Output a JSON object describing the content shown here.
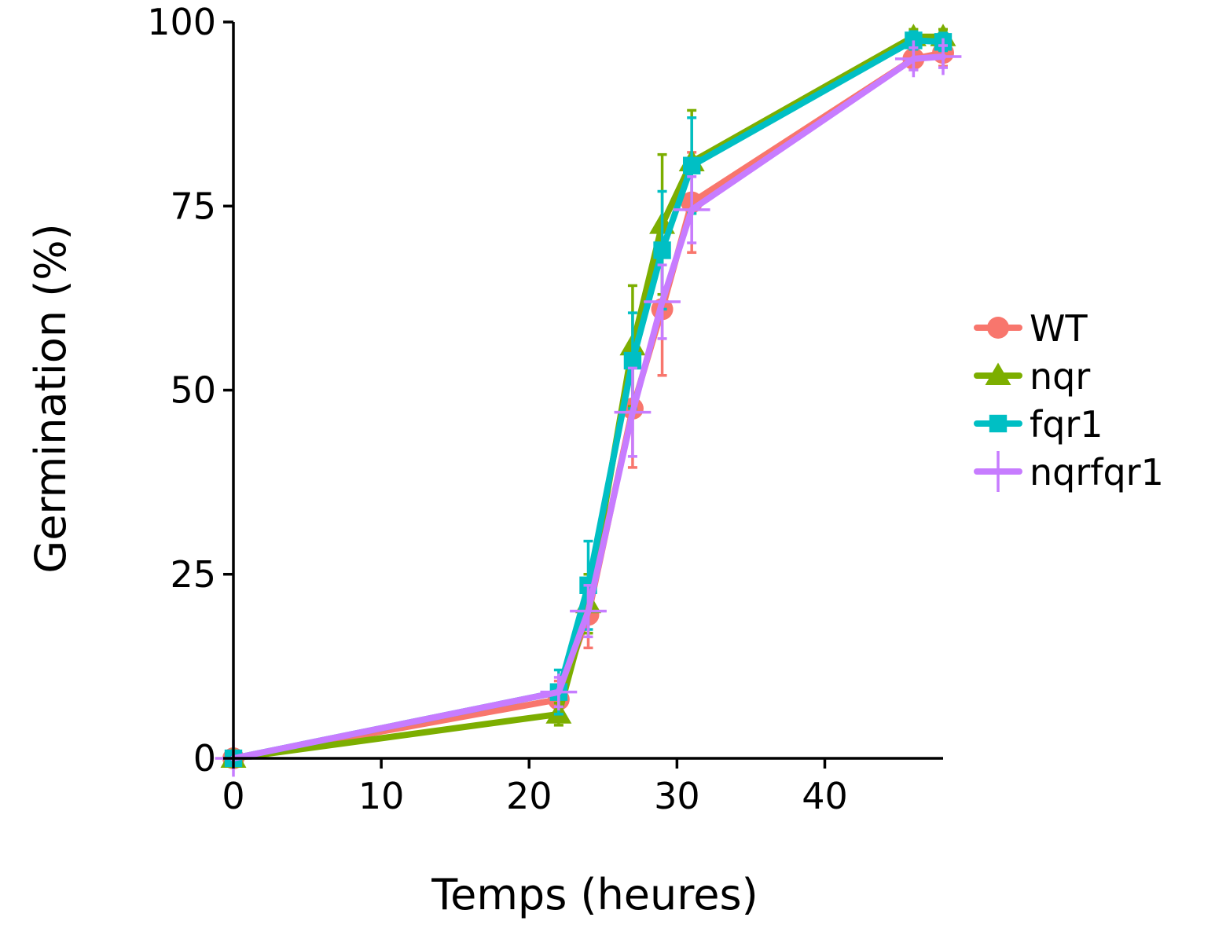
{
  "chart_data": {
    "type": "line",
    "title": "",
    "xlabel": "Temps (heures)",
    "ylabel": "Germination (%)",
    "xlim": [
      0,
      48
    ],
    "ylim": [
      0,
      100
    ],
    "xticks": [
      0,
      10,
      20,
      30,
      40
    ],
    "yticks": [
      0,
      25,
      50,
      75,
      100
    ],
    "grid": false,
    "legend_position": "right",
    "series": [
      {
        "name": "WT",
        "color": "#F8766D",
        "marker": "circle",
        "x": [
          0,
          22,
          24,
          27,
          29,
          31,
          46,
          48
        ],
        "y": [
          0,
          8,
          19.5,
          47.5,
          61,
          75.5,
          95,
          95.8
        ],
        "err": [
          0,
          2.5,
          4.5,
          8,
          9,
          6.8,
          1.5,
          1.8
        ]
      },
      {
        "name": "nqr",
        "color": "#7CAE00",
        "marker": "triangle",
        "x": [
          0,
          22,
          24,
          27,
          29,
          31,
          46,
          48
        ],
        "y": [
          0,
          6,
          21,
          56,
          72.5,
          81,
          98,
          98
        ],
        "err": [
          0,
          1.5,
          4,
          8.2,
          9.5,
          7,
          1,
          1
        ]
      },
      {
        "name": "fqr1",
        "color": "#00BFC4",
        "marker": "square",
        "x": [
          0,
          22,
          24,
          27,
          29,
          31,
          46,
          48
        ],
        "y": [
          0,
          9,
          23.5,
          54,
          69,
          80.5,
          97.5,
          97.3
        ],
        "err": [
          0,
          3,
          6,
          6.5,
          8,
          6.5,
          1.2,
          1.2
        ]
      },
      {
        "name": "nqrfqr1",
        "color": "#C77CFF",
        "marker": "plus",
        "x": [
          0,
          22,
          24,
          27,
          29,
          31,
          46,
          48
        ],
        "y": [
          0,
          9,
          20,
          47,
          62,
          74.5,
          95,
          95.3
        ],
        "err": [
          0,
          2,
          3.5,
          6,
          5,
          4.5,
          1.5,
          1.5
        ]
      }
    ]
  }
}
